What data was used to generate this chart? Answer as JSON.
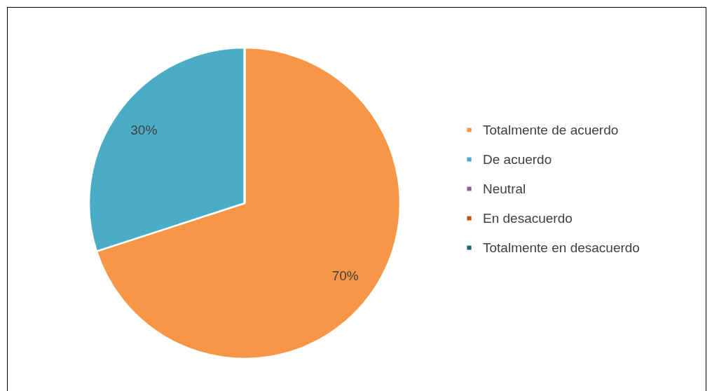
{
  "chart_data": {
    "type": "pie",
    "categories": [
      "Totalmente de acuerdo",
      "De acuerdo",
      "Neutral",
      "En desacuerdo",
      "Totalmente en desacuerdo"
    ],
    "values": [
      70,
      30,
      0,
      0,
      0
    ],
    "colors": [
      "#f79646",
      "#4bacc6",
      "#8064a2",
      "#c0580f",
      "#1f6375"
    ],
    "value_labels": [
      "70%",
      "30%",
      null,
      null,
      null
    ],
    "legend": "right"
  }
}
